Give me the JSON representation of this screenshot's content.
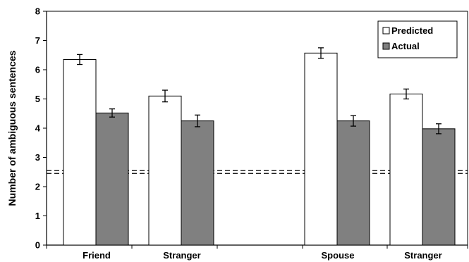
{
  "chart_data": {
    "type": "bar",
    "categories": [
      "Friend",
      "Stranger",
      "Spouse",
      "Stranger"
    ],
    "series": [
      {
        "name": "Predicted",
        "color": "#ffffff",
        "values": [
          6.35,
          5.1,
          6.57,
          5.17
        ],
        "errors": [
          0.17,
          0.2,
          0.18,
          0.17
        ]
      },
      {
        "name": "Actual",
        "color": "#808080",
        "values": [
          4.52,
          4.25,
          4.25,
          3.98
        ],
        "errors": [
          0.14,
          0.2,
          0.18,
          0.17
        ]
      }
    ],
    "ylabel": "Number of ambiguous sentences",
    "xlabel": "",
    "ylim": [
      0,
      8
    ],
    "yticks": [
      0,
      1,
      2,
      3,
      4,
      5,
      6,
      7,
      8
    ],
    "reference_line": {
      "y": 2.5,
      "style": "dashed",
      "color": "#000000"
    },
    "legend": {
      "position": "top-right"
    },
    "grid": false,
    "colors": {
      "axis": "#000000",
      "bar_outline": "#000000"
    }
  }
}
